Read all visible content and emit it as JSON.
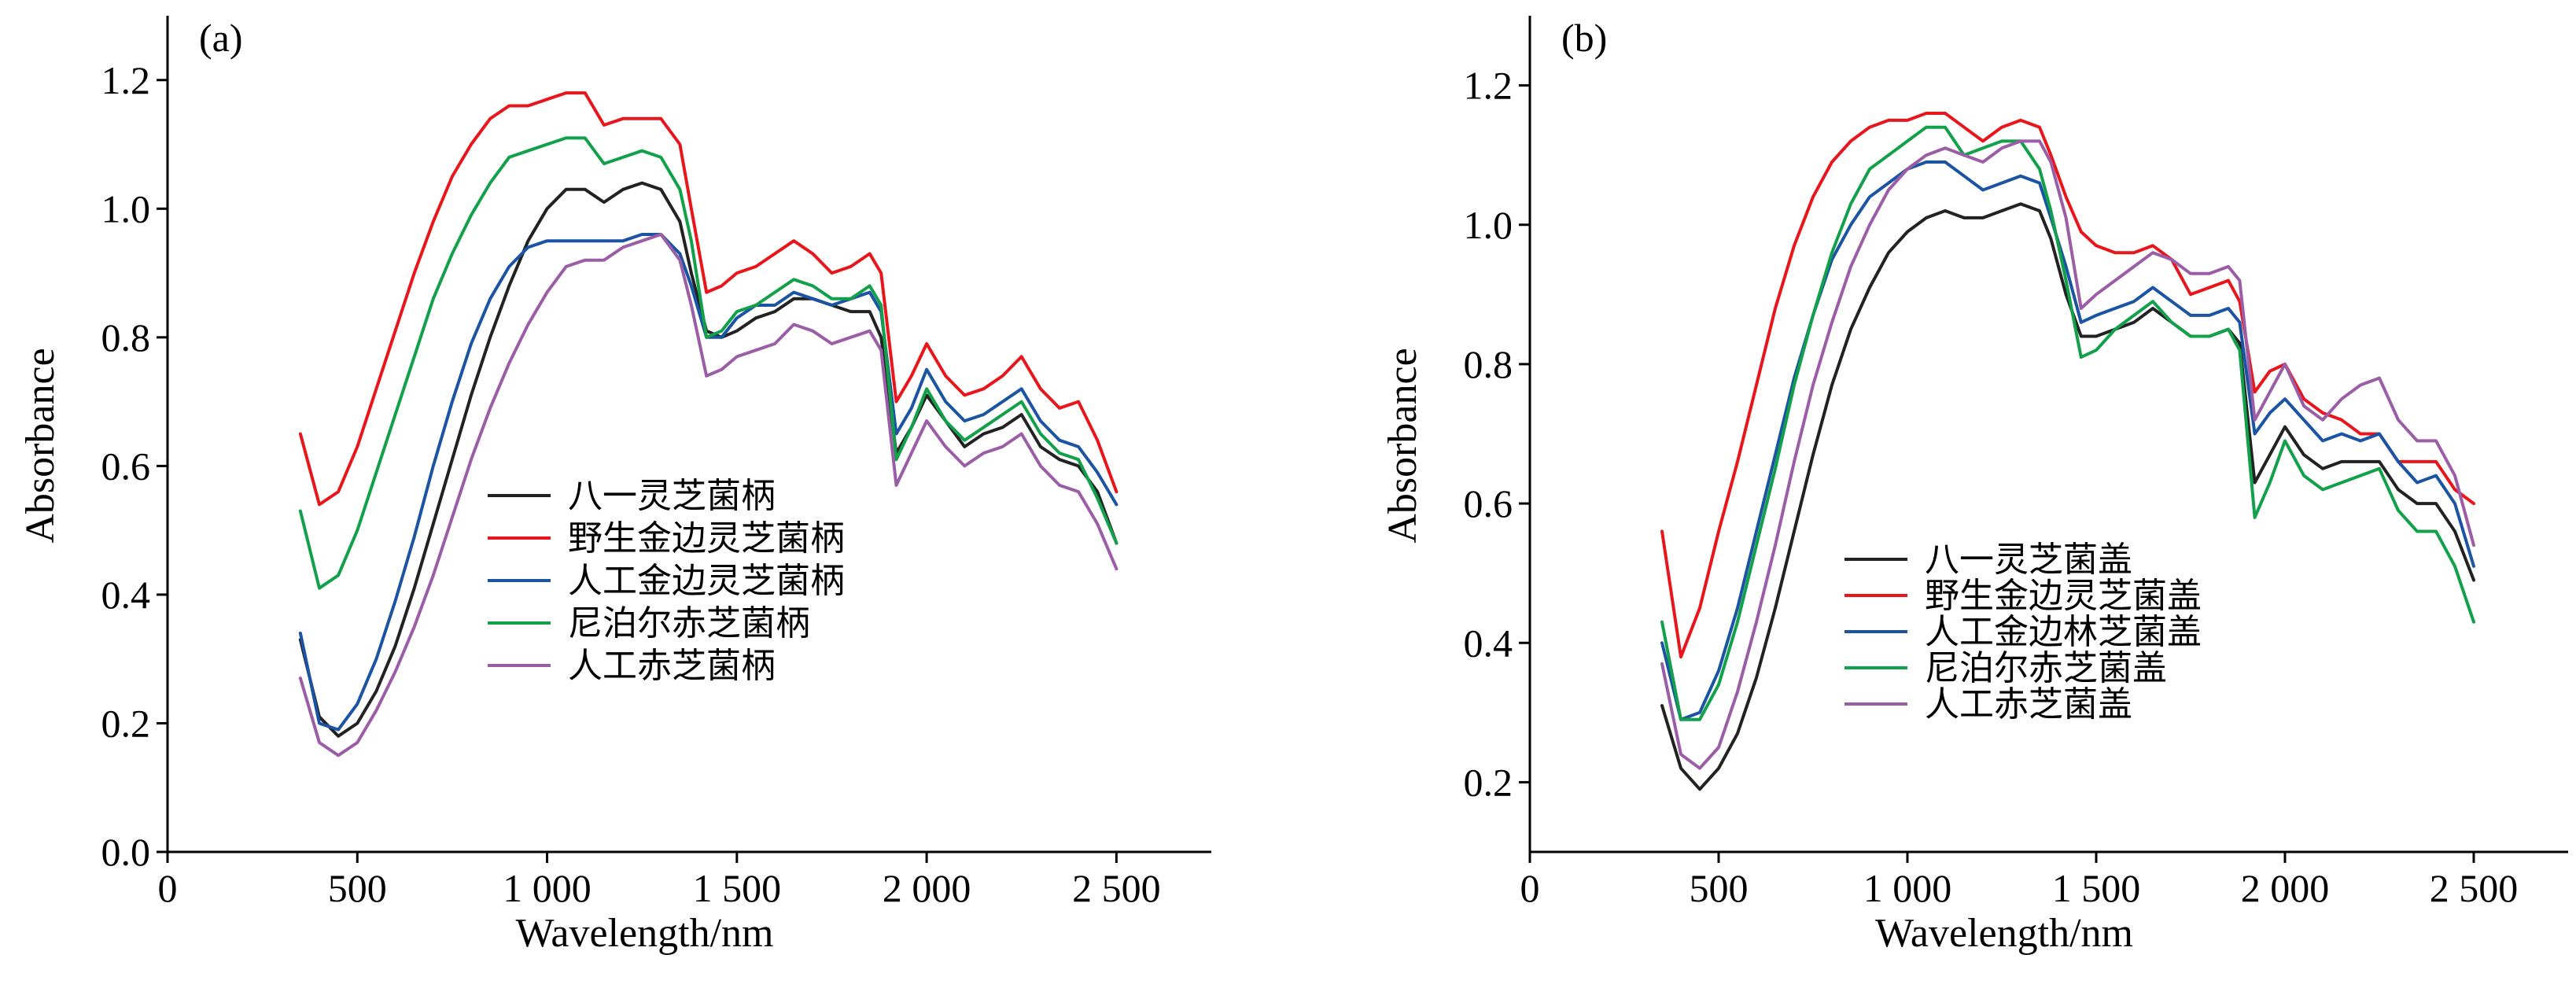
{
  "colors": {
    "black": "#222222",
    "red": "#e8161b",
    "blue": "#1a54a3",
    "green": "#12a04a",
    "purple": "#9b5ea6"
  },
  "chart_data": [
    {
      "type": "line",
      "panel_label": "(a)",
      "xlabel": "Wavelength/nm",
      "ylabel": "Absorbance",
      "xlim": [
        0,
        2750
      ],
      "ylim": [
        0,
        1.3
      ],
      "xticks": [
        0,
        500,
        1000,
        1500,
        2000,
        2500
      ],
      "xtick_labels": [
        "0",
        "500",
        "1 000",
        "1 500",
        "2 000",
        "2 500"
      ],
      "yticks": [
        0,
        0.2,
        0.4,
        0.6,
        0.8,
        1.0,
        1.2
      ],
      "ytick_labels": [
        "0.0",
        "0.2",
        "0.4",
        "0.6",
        "0.8",
        "1.0",
        "1.2"
      ],
      "legend_position": "center",
      "series": [
        {
          "name": "八一灵芝菌柄",
          "color": "#222222",
          "x": [
            350,
            400,
            450,
            500,
            550,
            600,
            650,
            700,
            750,
            800,
            850,
            900,
            950,
            1000,
            1050,
            1100,
            1150,
            1200,
            1250,
            1300,
            1350,
            1380,
            1420,
            1460,
            1500,
            1550,
            1600,
            1650,
            1700,
            1750,
            1800,
            1850,
            1880,
            1920,
            1960,
            2000,
            2050,
            2100,
            2150,
            2200,
            2250,
            2300,
            2350,
            2400,
            2450,
            2500
          ],
          "y": [
            0.33,
            0.21,
            0.18,
            0.2,
            0.25,
            0.32,
            0.41,
            0.51,
            0.61,
            0.71,
            0.8,
            0.88,
            0.95,
            1.0,
            1.03,
            1.03,
            1.01,
            1.03,
            1.04,
            1.03,
            0.98,
            0.9,
            0.81,
            0.8,
            0.81,
            0.83,
            0.84,
            0.86,
            0.86,
            0.85,
            0.84,
            0.84,
            0.8,
            0.62,
            0.66,
            0.71,
            0.67,
            0.63,
            0.65,
            0.66,
            0.68,
            0.63,
            0.61,
            0.6,
            0.56,
            0.48
          ]
        },
        {
          "name": "野生金边灵芝菌柄",
          "color": "#e8161b",
          "x": [
            350,
            400,
            450,
            500,
            550,
            600,
            650,
            700,
            750,
            800,
            850,
            900,
            950,
            1000,
            1050,
            1100,
            1150,
            1200,
            1250,
            1300,
            1350,
            1380,
            1420,
            1460,
            1500,
            1550,
            1600,
            1650,
            1700,
            1750,
            1800,
            1850,
            1880,
            1920,
            1960,
            2000,
            2050,
            2100,
            2150,
            2200,
            2250,
            2300,
            2350,
            2400,
            2450,
            2500
          ],
          "y": [
            0.65,
            0.54,
            0.56,
            0.63,
            0.72,
            0.81,
            0.9,
            0.98,
            1.05,
            1.1,
            1.14,
            1.16,
            1.16,
            1.17,
            1.18,
            1.18,
            1.13,
            1.14,
            1.14,
            1.14,
            1.1,
            1.0,
            0.87,
            0.88,
            0.9,
            0.91,
            0.93,
            0.95,
            0.93,
            0.9,
            0.91,
            0.93,
            0.9,
            0.7,
            0.74,
            0.79,
            0.74,
            0.71,
            0.72,
            0.74,
            0.77,
            0.72,
            0.69,
            0.7,
            0.64,
            0.56
          ]
        },
        {
          "name": "人工金边灵芝菌柄",
          "color": "#1a54a3",
          "x": [
            350,
            400,
            450,
            500,
            550,
            600,
            650,
            700,
            750,
            800,
            850,
            900,
            950,
            1000,
            1050,
            1100,
            1150,
            1200,
            1250,
            1300,
            1350,
            1380,
            1420,
            1460,
            1500,
            1550,
            1600,
            1650,
            1700,
            1750,
            1800,
            1850,
            1880,
            1920,
            1960,
            2000,
            2050,
            2100,
            2150,
            2200,
            2250,
            2300,
            2350,
            2400,
            2450,
            2500
          ],
          "y": [
            0.34,
            0.2,
            0.19,
            0.23,
            0.3,
            0.39,
            0.49,
            0.6,
            0.7,
            0.79,
            0.86,
            0.91,
            0.94,
            0.95,
            0.95,
            0.95,
            0.95,
            0.95,
            0.96,
            0.96,
            0.93,
            0.88,
            0.8,
            0.8,
            0.83,
            0.85,
            0.85,
            0.87,
            0.86,
            0.85,
            0.86,
            0.87,
            0.84,
            0.65,
            0.69,
            0.75,
            0.7,
            0.67,
            0.68,
            0.7,
            0.72,
            0.67,
            0.64,
            0.63,
            0.59,
            0.54
          ]
        },
        {
          "name": "尼泊尔赤芝菌柄",
          "color": "#12a04a",
          "x": [
            350,
            400,
            450,
            500,
            550,
            600,
            650,
            700,
            750,
            800,
            850,
            900,
            950,
            1000,
            1050,
            1100,
            1150,
            1200,
            1250,
            1300,
            1350,
            1380,
            1420,
            1460,
            1500,
            1550,
            1600,
            1650,
            1700,
            1750,
            1800,
            1850,
            1880,
            1920,
            1960,
            2000,
            2050,
            2100,
            2150,
            2200,
            2250,
            2300,
            2350,
            2400,
            2450,
            2500
          ],
          "y": [
            0.53,
            0.41,
            0.43,
            0.5,
            0.59,
            0.68,
            0.77,
            0.86,
            0.93,
            0.99,
            1.04,
            1.08,
            1.09,
            1.1,
            1.11,
            1.11,
            1.07,
            1.08,
            1.09,
            1.08,
            1.03,
            0.95,
            0.8,
            0.81,
            0.84,
            0.85,
            0.87,
            0.89,
            0.88,
            0.86,
            0.86,
            0.88,
            0.85,
            0.61,
            0.66,
            0.72,
            0.67,
            0.64,
            0.66,
            0.68,
            0.7,
            0.65,
            0.62,
            0.61,
            0.55,
            0.48
          ]
        },
        {
          "name": "人工赤芝菌柄",
          "color": "#9b5ea6",
          "x": [
            350,
            400,
            450,
            500,
            550,
            600,
            650,
            700,
            750,
            800,
            850,
            900,
            950,
            1000,
            1050,
            1100,
            1150,
            1200,
            1250,
            1300,
            1350,
            1380,
            1420,
            1460,
            1500,
            1550,
            1600,
            1650,
            1700,
            1750,
            1800,
            1850,
            1880,
            1920,
            1960,
            2000,
            2050,
            2100,
            2150,
            2200,
            2250,
            2300,
            2350,
            2400,
            2450,
            2500
          ],
          "y": [
            0.27,
            0.17,
            0.15,
            0.17,
            0.22,
            0.28,
            0.35,
            0.43,
            0.52,
            0.61,
            0.69,
            0.76,
            0.82,
            0.87,
            0.91,
            0.92,
            0.92,
            0.94,
            0.95,
            0.96,
            0.92,
            0.85,
            0.74,
            0.75,
            0.77,
            0.78,
            0.79,
            0.82,
            0.81,
            0.79,
            0.8,
            0.81,
            0.78,
            0.57,
            0.62,
            0.67,
            0.63,
            0.6,
            0.62,
            0.63,
            0.65,
            0.6,
            0.57,
            0.56,
            0.51,
            0.44
          ]
        }
      ]
    },
    {
      "type": "line",
      "panel_label": "(b)",
      "xlabel": "Wavelength/nm",
      "ylabel": "Absorbance",
      "xlim": [
        0,
        2750
      ],
      "ylim": [
        0.1,
        1.3
      ],
      "xticks": [
        0,
        500,
        1000,
        1500,
        2000,
        2500
      ],
      "xtick_labels": [
        "0",
        "500",
        "1 000",
        "1 500",
        "2 000",
        "2 500"
      ],
      "yticks": [
        0.2,
        0.4,
        0.6,
        0.8,
        1.0,
        1.2
      ],
      "ytick_labels": [
        "0.2",
        "0.4",
        "0.6",
        "0.8",
        "1.0",
        "1.2"
      ],
      "legend_position": "bottom-left",
      "series": [
        {
          "name": "八一灵芝菌盖",
          "color": "#222222",
          "x": [
            350,
            400,
            450,
            500,
            550,
            600,
            650,
            700,
            750,
            800,
            850,
            900,
            950,
            1000,
            1050,
            1100,
            1150,
            1200,
            1250,
            1300,
            1350,
            1380,
            1420,
            1460,
            1500,
            1550,
            1600,
            1650,
            1700,
            1750,
            1800,
            1850,
            1880,
            1920,
            1960,
            2000,
            2050,
            2100,
            2150,
            2200,
            2250,
            2300,
            2350,
            2400,
            2450,
            2500
          ],
          "y": [
            0.31,
            0.22,
            0.19,
            0.22,
            0.27,
            0.35,
            0.45,
            0.56,
            0.67,
            0.77,
            0.85,
            0.91,
            0.96,
            0.99,
            1.01,
            1.02,
            1.01,
            1.01,
            1.02,
            1.03,
            1.02,
            0.98,
            0.9,
            0.84,
            0.84,
            0.85,
            0.86,
            0.88,
            0.86,
            0.84,
            0.84,
            0.85,
            0.83,
            0.63,
            0.67,
            0.71,
            0.67,
            0.65,
            0.66,
            0.66,
            0.66,
            0.62,
            0.6,
            0.6,
            0.56,
            0.49
          ]
        },
        {
          "name": "野生金边灵芝菌盖",
          "color": "#e8161b",
          "x": [
            350,
            400,
            450,
            500,
            550,
            600,
            650,
            700,
            750,
            800,
            850,
            900,
            950,
            1000,
            1050,
            1100,
            1150,
            1200,
            1250,
            1300,
            1350,
            1380,
            1420,
            1460,
            1500,
            1550,
            1600,
            1650,
            1700,
            1750,
            1800,
            1850,
            1880,
            1920,
            1960,
            2000,
            2050,
            2100,
            2150,
            2200,
            2250,
            2300,
            2350,
            2400,
            2450,
            2500
          ],
          "y": [
            0.56,
            0.38,
            0.45,
            0.56,
            0.66,
            0.77,
            0.88,
            0.97,
            1.04,
            1.09,
            1.12,
            1.14,
            1.15,
            1.15,
            1.16,
            1.16,
            1.14,
            1.12,
            1.14,
            1.15,
            1.14,
            1.1,
            1.04,
            0.99,
            0.97,
            0.96,
            0.96,
            0.97,
            0.95,
            0.9,
            0.91,
            0.92,
            0.89,
            0.76,
            0.79,
            0.8,
            0.75,
            0.73,
            0.72,
            0.7,
            0.7,
            0.66,
            0.66,
            0.66,
            0.62,
            0.6
          ]
        },
        {
          "name": "人工金边林芝菌盖",
          "color": "#1a54a3",
          "x": [
            350,
            400,
            450,
            500,
            550,
            600,
            650,
            700,
            750,
            800,
            850,
            900,
            950,
            1000,
            1050,
            1100,
            1150,
            1200,
            1250,
            1300,
            1350,
            1380,
            1420,
            1460,
            1500,
            1550,
            1600,
            1650,
            1700,
            1750,
            1800,
            1850,
            1880,
            1920,
            1960,
            2000,
            2050,
            2100,
            2150,
            2200,
            2250,
            2300,
            2350,
            2400,
            2450,
            2500
          ],
          "y": [
            0.4,
            0.29,
            0.3,
            0.36,
            0.45,
            0.56,
            0.67,
            0.78,
            0.87,
            0.95,
            1.0,
            1.04,
            1.06,
            1.08,
            1.09,
            1.09,
            1.07,
            1.05,
            1.06,
            1.07,
            1.06,
            1.01,
            0.94,
            0.86,
            0.87,
            0.88,
            0.89,
            0.91,
            0.89,
            0.87,
            0.87,
            0.88,
            0.86,
            0.7,
            0.73,
            0.75,
            0.72,
            0.69,
            0.7,
            0.69,
            0.7,
            0.66,
            0.63,
            0.64,
            0.6,
            0.51
          ]
        },
        {
          "name": "尼泊尔赤芝菌盖",
          "color": "#12a04a",
          "x": [
            350,
            400,
            450,
            500,
            550,
            600,
            650,
            700,
            750,
            800,
            850,
            900,
            950,
            1000,
            1050,
            1100,
            1150,
            1200,
            1250,
            1300,
            1350,
            1380,
            1420,
            1460,
            1500,
            1550,
            1600,
            1650,
            1700,
            1750,
            1800,
            1850,
            1880,
            1920,
            1960,
            2000,
            2050,
            2100,
            2150,
            2200,
            2250,
            2300,
            2350,
            2400,
            2450,
            2500
          ],
          "y": [
            0.43,
            0.29,
            0.29,
            0.34,
            0.43,
            0.54,
            0.65,
            0.77,
            0.87,
            0.96,
            1.03,
            1.08,
            1.1,
            1.12,
            1.14,
            1.14,
            1.1,
            1.11,
            1.12,
            1.12,
            1.08,
            1.02,
            0.92,
            0.81,
            0.82,
            0.85,
            0.87,
            0.89,
            0.86,
            0.84,
            0.84,
            0.85,
            0.82,
            0.58,
            0.63,
            0.69,
            0.64,
            0.62,
            0.63,
            0.64,
            0.65,
            0.59,
            0.56,
            0.56,
            0.51,
            0.43
          ]
        },
        {
          "name": "人工赤芝菌盖",
          "color": "#9b5ea6",
          "x": [
            350,
            400,
            450,
            500,
            550,
            600,
            650,
            700,
            750,
            800,
            850,
            900,
            950,
            1000,
            1050,
            1100,
            1150,
            1200,
            1250,
            1300,
            1350,
            1380,
            1420,
            1460,
            1500,
            1550,
            1600,
            1650,
            1700,
            1750,
            1800,
            1850,
            1880,
            1920,
            1960,
            2000,
            2050,
            2100,
            2150,
            2200,
            2250,
            2300,
            2350,
            2400,
            2450,
            2500
          ],
          "y": [
            0.37,
            0.24,
            0.22,
            0.25,
            0.33,
            0.43,
            0.54,
            0.66,
            0.77,
            0.86,
            0.94,
            1.0,
            1.05,
            1.08,
            1.1,
            1.11,
            1.1,
            1.09,
            1.11,
            1.12,
            1.12,
            1.09,
            1.01,
            0.88,
            0.9,
            0.92,
            0.94,
            0.96,
            0.95,
            0.93,
            0.93,
            0.94,
            0.92,
            0.72,
            0.76,
            0.8,
            0.74,
            0.72,
            0.75,
            0.77,
            0.78,
            0.72,
            0.69,
            0.69,
            0.64,
            0.54
          ]
        }
      ]
    }
  ]
}
